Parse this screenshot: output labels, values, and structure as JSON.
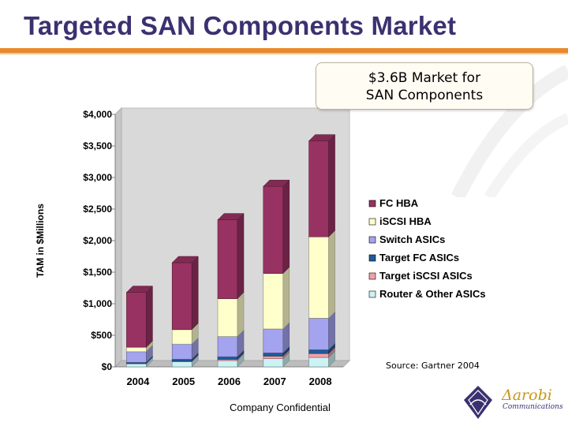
{
  "slide": {
    "title": "Targeted SAN Components Market",
    "callout_line1": "$3.6B Market for",
    "callout_line2": "SAN Components",
    "source": "Source:  Gartner 2004",
    "footer": "Company Confidential",
    "logo_text": "Δarobi",
    "logo_sub": "Communications",
    "accent_color": "#e8892b",
    "title_color": "#3b3170"
  },
  "chart_data": {
    "type": "bar",
    "stacked": true,
    "title": "",
    "xlabel": "",
    "ylabel": "TAM in $Millions",
    "ylim": [
      0,
      4000
    ],
    "yticks": [
      0,
      500,
      1000,
      1500,
      2000,
      2500,
      3000,
      3500,
      4000
    ],
    "ytick_labels": [
      "$0",
      "$500",
      "$1,000",
      "$1,500",
      "$2,000",
      "$2,500",
      "$3,000",
      "$3,500",
      "$4,000"
    ],
    "categories": [
      "2004",
      "2005",
      "2006",
      "2007",
      "2008"
    ],
    "legend_position": "right",
    "grid": false,
    "series": [
      {
        "name": "Router & Other ASICs",
        "color": "#ccf2f4",
        "values": [
          50,
          80,
          100,
          130,
          150
        ]
      },
      {
        "name": "Target iSCSI ASICs",
        "color": "#f4a0a8",
        "values": [
          0,
          10,
          20,
          40,
          60
        ]
      },
      {
        "name": "Target FC ASICs",
        "color": "#1f5a9a",
        "values": [
          20,
          30,
          40,
          50,
          60
        ]
      },
      {
        "name": "Switch ASICs",
        "color": "#a3a3f0",
        "values": [
          170,
          240,
          320,
          380,
          500
        ]
      },
      {
        "name": "iSCSI HBA",
        "color": "#ffffcc",
        "values": [
          70,
          230,
          600,
          880,
          1290
        ]
      },
      {
        "name": "FC HBA",
        "color": "#983262",
        "values": [
          870,
          1060,
          1250,
          1380,
          1520
        ]
      }
    ]
  }
}
